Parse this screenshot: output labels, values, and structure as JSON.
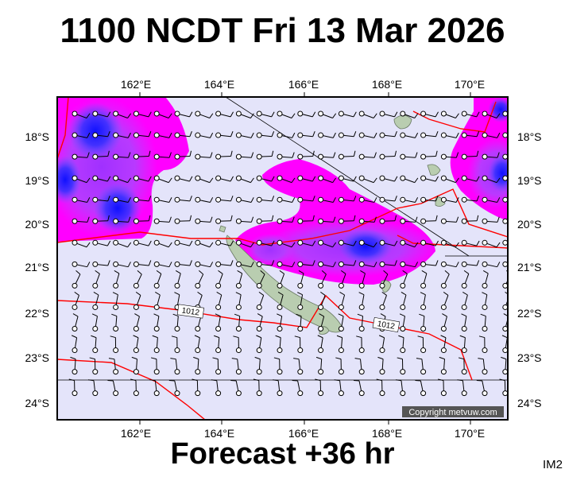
{
  "header": {
    "title": "1100 NCDT Fri 13 Mar 2026"
  },
  "footer": {
    "forecast": "Forecast +36 hr"
  },
  "badge": {
    "code": "IM2"
  },
  "map": {
    "lon_ticks": [
      "162°E",
      "164°E",
      "166°E",
      "168°E",
      "170°E"
    ],
    "lat_ticks": [
      "18°S",
      "19°S",
      "20°S",
      "21°S",
      "22°S",
      "23°S",
      "24°S"
    ],
    "isobar_labels": [
      "1012",
      "1012"
    ],
    "copyright": "Copyright metvuw.com",
    "colors": {
      "background": "#e4e4fa",
      "magenta": "#ff00ff",
      "violet": "#9b30ff",
      "blue": "#1a1aff",
      "isobar": "#ff0000",
      "land": "#b9cdb0"
    }
  }
}
